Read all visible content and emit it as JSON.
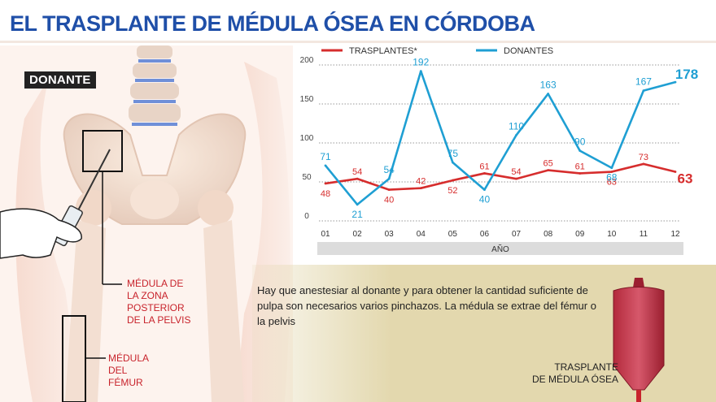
{
  "title": "EL TRASPLANTE DE MÉDULA ÓSEA EN CÓRDOBA",
  "badge": "DONANTE",
  "labels": {
    "pelvis": [
      "MÉDULA DE",
      "LA ZONA",
      "POSTERIOR",
      "DE LA PELVIS"
    ],
    "femur": [
      "MÉDULA",
      "DEL",
      "FÉMUR"
    ],
    "bag": [
      "TRASPLANTE",
      "DE MÉDULA ÓSEA"
    ]
  },
  "caption": "Hay que anestesiar al donante y para obtener la cantidad suficiente de pulpa son necesarios varios pinchazos. La médula se extrae del fémur o la pelvis",
  "colors": {
    "title": "#1f4fa8",
    "trasplantes": "#d62d2d",
    "donantes": "#1f9fd3",
    "axis_band": "#dcdcdc"
  },
  "chart_data": {
    "type": "line",
    "xlabel": "AÑO",
    "categories": [
      "01",
      "02",
      "03",
      "04",
      "05",
      "06",
      "07",
      "08",
      "09",
      "10",
      "11",
      "12"
    ],
    "y_ticks": [
      0,
      50,
      100,
      150,
      200
    ],
    "y_tick_labels": [
      "0",
      "50",
      "100",
      "150",
      "200"
    ],
    "ylim": [
      0,
      200
    ],
    "series": [
      {
        "name": "TRASPLANTES*",
        "values": [
          48,
          54,
          40,
          42,
          52,
          61,
          54,
          65,
          61,
          63,
          73,
          63
        ],
        "labels": [
          "48",
          "54",
          "40",
          "42",
          "52",
          "61",
          "54",
          "65",
          "61",
          "63",
          "73",
          "63"
        ]
      },
      {
        "name": "DONANTES",
        "values": [
          71,
          21,
          54,
          192,
          75,
          40,
          110,
          163,
          90,
          68,
          167,
          178
        ],
        "labels": [
          "71",
          "21",
          "54",
          "192",
          "75",
          "40",
          "110",
          "163",
          "90",
          "68",
          "167",
          "178"
        ]
      }
    ]
  }
}
